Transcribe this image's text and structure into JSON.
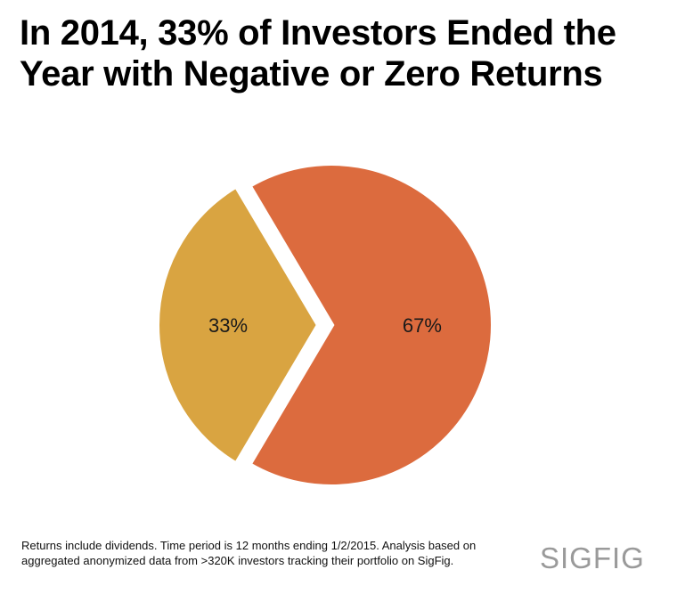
{
  "title_line1": "In 2014, 33% of Investors Ended the",
  "title_line2": "Year with Negative or Zero Returns",
  "chart_data": {
    "type": "pie",
    "slices": [
      {
        "label": "33%",
        "value": 33,
        "color": "#d9a441"
      },
      {
        "label": "67%",
        "value": 67,
        "color": "#dc6b3e"
      }
    ]
  },
  "footnote_line1": "Returns include dividends. Time period is 12 months ending 1/2/2015. Analysis based on",
  "footnote_line2": "aggregated anonymized data from >320K investors tracking their portfolio on SigFig.",
  "logo_text": "SIGFIG"
}
